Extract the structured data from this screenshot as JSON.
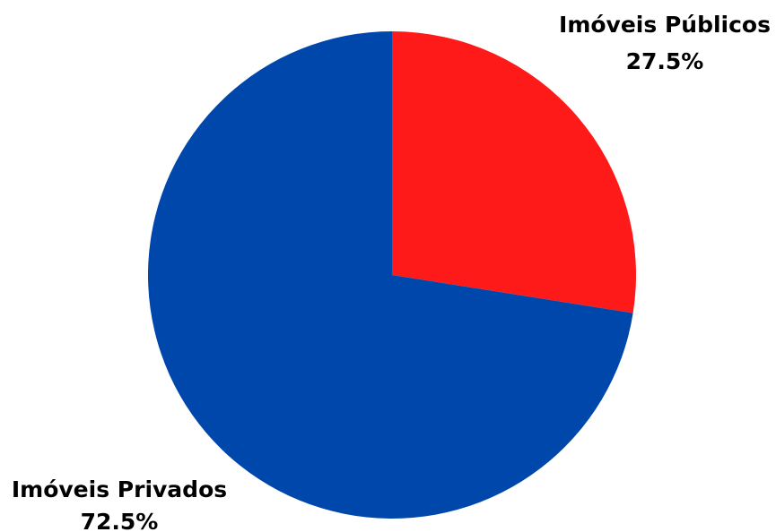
{
  "chart_data": {
    "type": "pie",
    "title": "",
    "start_angle_deg": 0,
    "direction": "clockwise",
    "slices": [
      {
        "label": "Imóveis Públicos",
        "value": 27.5,
        "value_label": "27.5%",
        "color": "#FF1A1A"
      },
      {
        "label": "Imóveis Privados",
        "value": 72.5,
        "value_label": "72.5%",
        "color": "#0047AB"
      }
    ]
  }
}
